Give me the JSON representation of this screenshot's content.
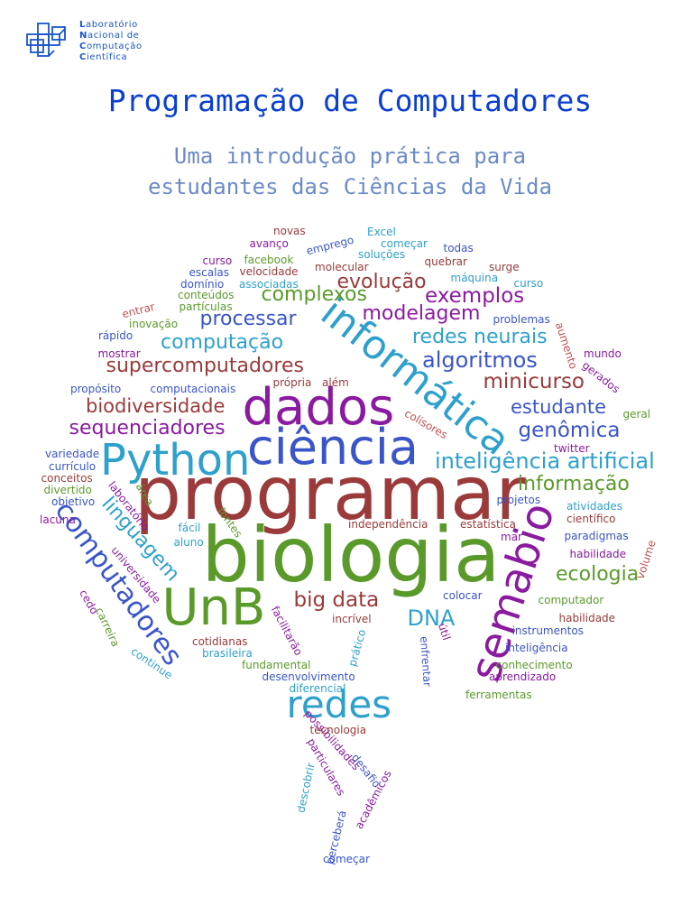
{
  "logo": {
    "lines": [
      {
        "initial": "L",
        "rest": "aboratório"
      },
      {
        "initial": "N",
        "rest": "acional de"
      },
      {
        "initial": "C",
        "rest": "omputação"
      },
      {
        "initial": "C",
        "rest": "ientífica"
      }
    ],
    "icon": "lncc-cubes-logo"
  },
  "title": "Programação de Computadores",
  "subtitle": [
    "Uma introdução prática para",
    "estudantes das Ciências da Vida"
  ],
  "colors": {
    "title": "#0a3fd0",
    "subtitle": "#6b8bc6",
    "logo": "#1a55c8",
    "cloud": [
      "#9a3a3a",
      "#5a9a2a",
      "#3a55c8",
      "#2ea0cc",
      "#8a1aa0",
      "#c05050"
    ]
  },
  "word_cloud": [
    {
      "text": "programar",
      "color": "#9a3a3a"
    },
    {
      "text": "biologia",
      "color": "#5a9a2a"
    },
    {
      "text": "ciência",
      "color": "#3a55c8"
    },
    {
      "text": "dados",
      "color": "#8a1aa0"
    },
    {
      "text": "informática",
      "color": "#2ea0cc"
    },
    {
      "text": "semabio",
      "color": "#8a1aa0"
    },
    {
      "text": "UnB",
      "color": "#5a9a2a"
    },
    {
      "text": "Python",
      "color": "#2ea0cc"
    },
    {
      "text": "redes",
      "color": "#2ea0cc"
    },
    {
      "text": "computadores",
      "color": "#3a55c8"
    },
    {
      "text": "linguagem",
      "color": "#2ea0cc"
    },
    {
      "text": "supercomputadores",
      "color": "#9a3a3a"
    },
    {
      "text": "sequenciadores",
      "color": "#8a1aa0"
    },
    {
      "text": "biodiversidade",
      "color": "#9a3a3a"
    },
    {
      "text": "inteligência artificial",
      "color": "#2ea0cc"
    },
    {
      "text": "genômica",
      "color": "#3a55c8"
    },
    {
      "text": "estudante",
      "color": "#3a55c8"
    },
    {
      "text": "minicurso",
      "color": "#9a3a3a"
    },
    {
      "text": "algoritmos",
      "color": "#3a55c8"
    },
    {
      "text": "redes neurais",
      "color": "#2ea0cc"
    },
    {
      "text": "modelagem",
      "color": "#8a1aa0"
    },
    {
      "text": "exemplos",
      "color": "#8a1aa0"
    },
    {
      "text": "evolução",
      "color": "#9a3a3a"
    },
    {
      "text": "complexos",
      "color": "#5a9a2a"
    },
    {
      "text": "processar",
      "color": "#3a55c8"
    },
    {
      "text": "computação",
      "color": "#2ea0cc"
    },
    {
      "text": "informação",
      "color": "#5a9a2a"
    },
    {
      "text": "ecologia",
      "color": "#5a9a2a"
    },
    {
      "text": "big data",
      "color": "#9a3a3a"
    },
    {
      "text": "DNA",
      "color": "#2ea0cc"
    },
    {
      "text": "novas",
      "color": "#9a3a3a"
    },
    {
      "text": "avanço",
      "color": "#8a1aa0"
    },
    {
      "text": "emprego",
      "color": "#3a55c8"
    },
    {
      "text": "Excel",
      "color": "#2ea0cc"
    },
    {
      "text": "começar",
      "color": "#2ea0cc"
    },
    {
      "text": "todas",
      "color": "#3a55c8"
    },
    {
      "text": "curso",
      "color": "#8a1aa0"
    },
    {
      "text": "facebook",
      "color": "#5a9a2a"
    },
    {
      "text": "soluções",
      "color": "#2ea0cc"
    },
    {
      "text": "quebrar",
      "color": "#9a3a3a"
    },
    {
      "text": "molecular",
      "color": "#9a3a3a"
    },
    {
      "text": "surge",
      "color": "#9a3a3a"
    },
    {
      "text": "escalas",
      "color": "#3a55c8"
    },
    {
      "text": "velocidade",
      "color": "#9a3a3a"
    },
    {
      "text": "máquina",
      "color": "#2ea0cc"
    },
    {
      "text": "domínio",
      "color": "#3a55c8"
    },
    {
      "text": "associadas",
      "color": "#2ea0cc"
    },
    {
      "text": "curso",
      "color": "#2ea0cc"
    },
    {
      "text": "conteúdos",
      "color": "#5a9a2a"
    },
    {
      "text": "entrar",
      "color": "#c05050"
    },
    {
      "text": "partículas",
      "color": "#5a9a2a"
    },
    {
      "text": "inovação",
      "color": "#5a9a2a"
    },
    {
      "text": "problemas",
      "color": "#3a55c8"
    },
    {
      "text": "rápido",
      "color": "#3a55c8"
    },
    {
      "text": "aumento",
      "color": "#c05050"
    },
    {
      "text": "mostrar",
      "color": "#8a1aa0"
    },
    {
      "text": "mundo",
      "color": "#8a1aa0"
    },
    {
      "text": "gerados",
      "color": "#8a1aa0"
    },
    {
      "text": "propósito",
      "color": "#3a55c8"
    },
    {
      "text": "computacionais",
      "color": "#3a55c8"
    },
    {
      "text": "própria",
      "color": "#9a3a3a"
    },
    {
      "text": "além",
      "color": "#9a3a3a"
    },
    {
      "text": "colisores",
      "color": "#c05050"
    },
    {
      "text": "geral",
      "color": "#5a9a2a"
    },
    {
      "text": "twitter",
      "color": "#8a1aa0"
    },
    {
      "text": "variedade",
      "color": "#3a55c8"
    },
    {
      "text": "currículo",
      "color": "#3a55c8"
    },
    {
      "text": "conceitos",
      "color": "#9a3a3a"
    },
    {
      "text": "divertido",
      "color": "#5a9a2a"
    },
    {
      "text": "laboratório",
      "color": "#8a1aa0"
    },
    {
      "text": "área",
      "color": "#5a9a2a"
    },
    {
      "text": "objetivo",
      "color": "#3a55c8"
    },
    {
      "text": "projetos",
      "color": "#3a55c8"
    },
    {
      "text": "atividades",
      "color": "#2ea0cc"
    },
    {
      "text": "lacuna",
      "color": "#8a1aa0"
    },
    {
      "text": "fontes",
      "color": "#5a9a2a"
    },
    {
      "text": "independência",
      "color": "#9a3a3a"
    },
    {
      "text": "estatística",
      "color": "#9a3a3a"
    },
    {
      "text": "científico",
      "color": "#9a3a3a"
    },
    {
      "text": "fácil",
      "color": "#2ea0cc"
    },
    {
      "text": "mar",
      "color": "#8a1aa0"
    },
    {
      "text": "paradigmas",
      "color": "#3a55c8"
    },
    {
      "text": "aluno",
      "color": "#2ea0cc"
    },
    {
      "text": "habilidade",
      "color": "#8a1aa0"
    },
    {
      "text": "volume",
      "color": "#c05050"
    },
    {
      "text": "universidade",
      "color": "#8a1aa0"
    },
    {
      "text": "colocar",
      "color": "#3a55c8"
    },
    {
      "text": "cedo",
      "color": "#8a1aa0"
    },
    {
      "text": "computador",
      "color": "#5a9a2a"
    },
    {
      "text": "carreira",
      "color": "#5a9a2a"
    },
    {
      "text": "facilitarão",
      "color": "#8a1aa0"
    },
    {
      "text": "incrível",
      "color": "#9a3a3a"
    },
    {
      "text": "habilidade",
      "color": "#9a3a3a"
    },
    {
      "text": "instrumentos",
      "color": "#3a55c8"
    },
    {
      "text": "útil",
      "color": "#8a1aa0"
    },
    {
      "text": "cotidianas",
      "color": "#9a3a3a"
    },
    {
      "text": "prático",
      "color": "#2ea0cc"
    },
    {
      "text": "inteligência",
      "color": "#3a55c8"
    },
    {
      "text": "continue",
      "color": "#2ea0cc"
    },
    {
      "text": "brasileira",
      "color": "#2ea0cc"
    },
    {
      "text": "enfrentar",
      "color": "#3a55c8"
    },
    {
      "text": "conhecimento",
      "color": "#5a9a2a"
    },
    {
      "text": "fundamental",
      "color": "#5a9a2a"
    },
    {
      "text": "aprendizado",
      "color": "#8a1aa0"
    },
    {
      "text": "desenvolvimento",
      "color": "#3a55c8"
    },
    {
      "text": "diferencial",
      "color": "#2ea0cc"
    },
    {
      "text": "ferramentas",
      "color": "#5a9a2a"
    },
    {
      "text": "possibilidades",
      "color": "#8a1aa0"
    },
    {
      "text": "tecnologia",
      "color": "#9a3a3a"
    },
    {
      "text": "particulares",
      "color": "#8a1aa0"
    },
    {
      "text": "desafio",
      "color": "#3a55c8"
    },
    {
      "text": "descobrir",
      "color": "#2ea0cc"
    },
    {
      "text": "acadêmicos",
      "color": "#8a1aa0"
    },
    {
      "text": "perceberá",
      "color": "#3a55c8"
    },
    {
      "text": "começar",
      "color": "#3a55c8"
    }
  ]
}
